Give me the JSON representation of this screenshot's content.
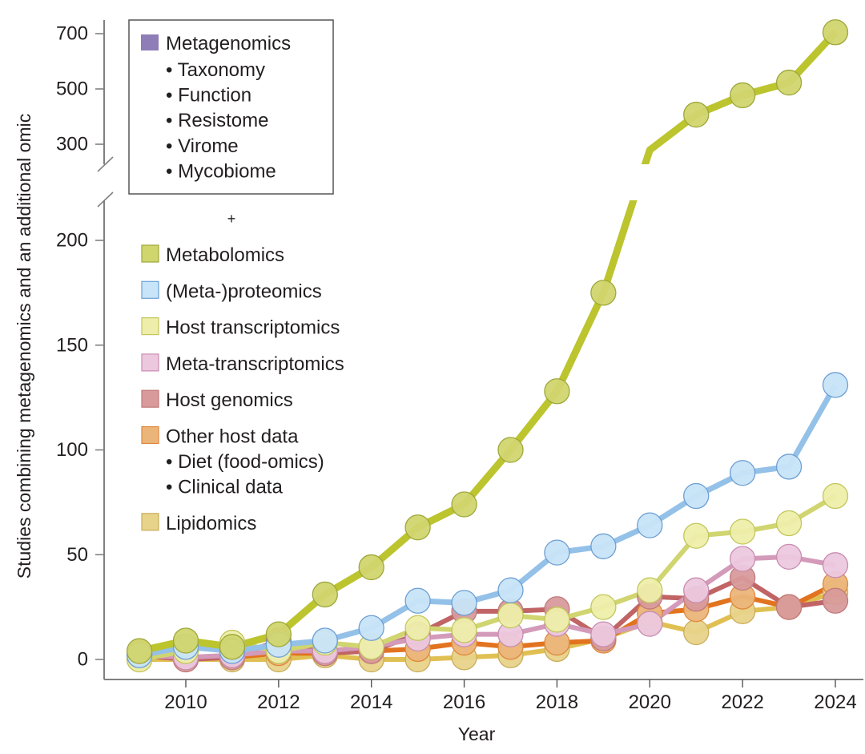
{
  "chart_data": {
    "type": "line",
    "title": "",
    "xlabel": "Year",
    "ylabel": "Studies combining metagenomics and an additional omic",
    "x": [
      2009,
      2010,
      2011,
      2012,
      2013,
      2014,
      2015,
      2016,
      2017,
      2018,
      2019,
      2020,
      2021,
      2022,
      2023,
      2024
    ],
    "x_ticks": [
      "2010",
      "2012",
      "2014",
      "2016",
      "2018",
      "2020",
      "2022",
      "2024"
    ],
    "y_ticks_lower": [
      "0",
      "50",
      "100",
      "150",
      "200"
    ],
    "y_ticks_upper": [
      "300",
      "500",
      "700"
    ],
    "ylim_lower": [
      0,
      200
    ],
    "ylim_upper": [
      300,
      700
    ],
    "axis_break": "broken y-axis between 200 and 300",
    "grid": false,
    "legend_placement": "top-left",
    "legend_header": {
      "name": "Metagenomics",
      "color": "#8e7db6",
      "items": [
        "Taxonomy",
        "Function",
        "Resistome",
        "Virome",
        "Mycobiome"
      ]
    },
    "legend_plus": "+",
    "series": [
      {
        "name": "Metabolomics",
        "line": "#bcc42e",
        "fill": "#d1d56e",
        "stroke": "#9da83a",
        "values": [
          4,
          9,
          6,
          12,
          31,
          44,
          63,
          74,
          100,
          128,
          175,
          294,
          407,
          477,
          523,
          705
        ]
      },
      {
        "name": "(Meta-)proteomics",
        "line": "#94c1e8",
        "fill": "#c8e4f8",
        "stroke": "#6c9fd4",
        "values": [
          2,
          6,
          4,
          7,
          9,
          15,
          28,
          27,
          33,
          51,
          54,
          64,
          78,
          89,
          92,
          131
        ]
      },
      {
        "name": "Host transcriptomics",
        "line": "#d0d56f",
        "fill": "#eeeeaa",
        "stroke": "#c2c65c",
        "values": [
          0,
          4,
          8,
          4,
          8,
          6,
          15,
          14,
          21,
          19,
          25,
          33,
          59,
          61,
          65,
          78
        ]
      },
      {
        "name": "Meta-transcriptomics",
        "line": "#d49ab9",
        "fill": "#ecc8de",
        "stroke": "#c88db0",
        "values": [
          2,
          1,
          2,
          4,
          4,
          6,
          10,
          12,
          12,
          17,
          12,
          17,
          33,
          48,
          49,
          45
        ]
      },
      {
        "name": "Host genomics",
        "line": "#c06466",
        "fill": "#d89a9b",
        "stroke": "#c07a7b",
        "values": [
          2,
          0,
          1,
          9,
          3,
          4,
          12,
          23,
          23,
          24,
          10,
          30,
          29,
          39,
          25,
          28
        ]
      },
      {
        "name": "Other host data",
        "line": "#e2731f",
        "fill": "#ebb57a",
        "stroke": "#e0873c",
        "sub_items": [
          "Diet (food-omics)",
          "Clinical data"
        ],
        "values": [
          3,
          1,
          1,
          3,
          3,
          4,
          5,
          8,
          6,
          8,
          9,
          22,
          24,
          30,
          25,
          36
        ]
      },
      {
        "name": "Lipidomics",
        "line": "#e0c052",
        "fill": "#e8d38a",
        "stroke": "#c9ad5a",
        "values": [
          0,
          0,
          0,
          0,
          2,
          0,
          0,
          1,
          2,
          5,
          10,
          18,
          13,
          23,
          25,
          32
        ]
      }
    ]
  }
}
